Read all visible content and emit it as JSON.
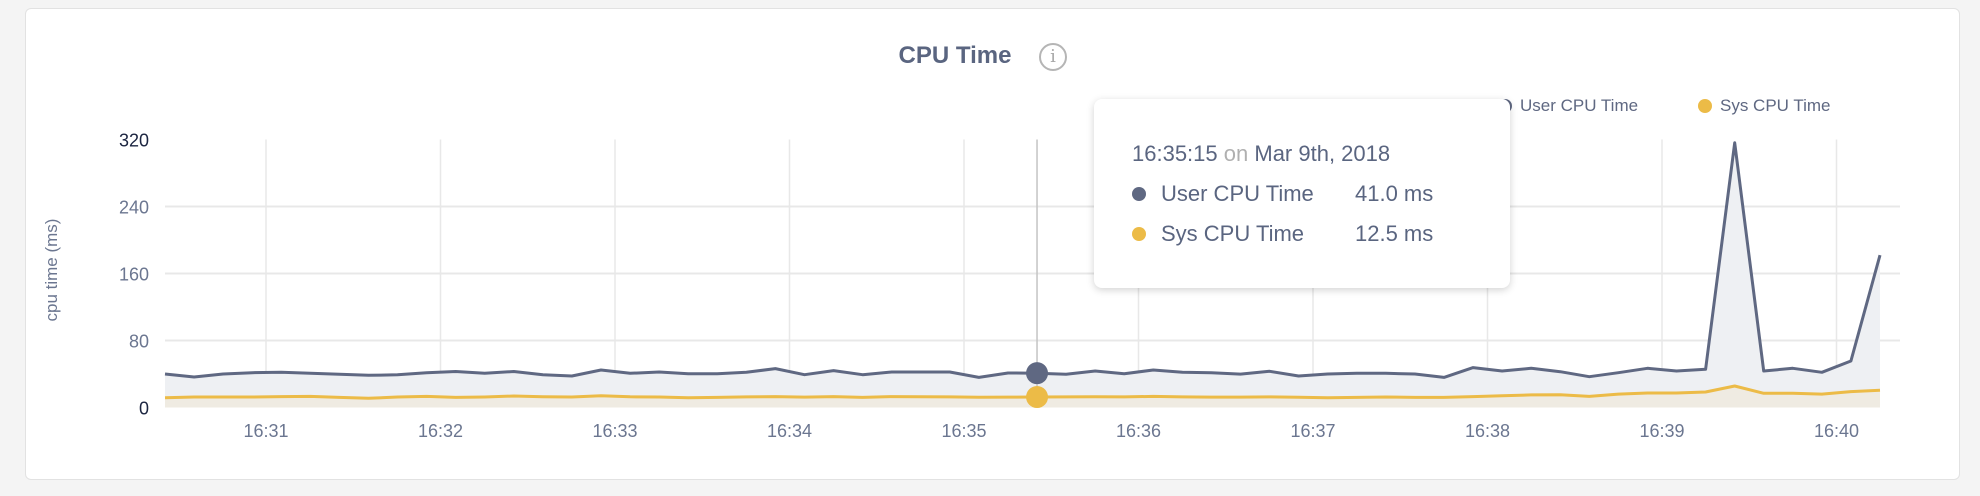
{
  "title": "CPU Time",
  "info_icon": "info-icon",
  "colors": {
    "user": "#5f6882",
    "sys": "#ecbb47",
    "user_fill": "#eef0f3",
    "sys_fill": "#efebe2",
    "grid": "#e8e8e8"
  },
  "tooltip": {
    "time": "16:35:15",
    "on": "on",
    "date": "Mar 9th, 2018",
    "rows": [
      {
        "label": "User CPU Time",
        "value": "41.0 ms"
      },
      {
        "label": "Sys CPU Time",
        "value": "12.5 ms"
      }
    ]
  },
  "chart_data": {
    "type": "area",
    "title": "CPU Time",
    "ylabel": "cpu time (ms)",
    "xlabel": "",
    "ylim": [
      0,
      320
    ],
    "yticks": [
      "0",
      "80",
      "160",
      "240",
      "320"
    ],
    "xticks": [
      "16:31",
      "16:32",
      "16:33",
      "16:34",
      "16:35",
      "16:36",
      "16:37",
      "16:38",
      "16:39",
      "16:40"
    ],
    "x_start": "16:30:15",
    "x_end": "16:40:05",
    "x_interval_seconds": 10,
    "grid": true,
    "legend_position": "top-right",
    "hover_index": 30,
    "series": [
      {
        "name": "User CPU Time",
        "values": [
          40,
          36.4,
          40,
          41.6,
          42,
          41,
          39.6,
          38.4,
          39,
          41.6,
          43,
          41,
          43,
          39,
          37.6,
          44.8,
          40.8,
          42.4,
          40.4,
          40.4,
          42,
          46.4,
          39.2,
          44,
          39.2,
          42.4,
          42.4,
          42.4,
          36,
          41.2,
          41.0,
          39.6,
          43.6,
          40.4,
          44.8,
          42,
          41.6,
          39.9,
          43.2,
          37.6,
          40,
          40.8,
          40.8,
          40,
          36,
          47.6,
          43.6,
          46.8,
          42.8,
          36.8,
          41.6,
          46.8,
          43.6,
          45.6,
          316,
          43.6,
          46.8,
          42,
          55.5,
          182
        ]
      },
      {
        "name": "Sys CPU Time",
        "values": [
          11.7,
          12.5,
          12.5,
          12.5,
          13,
          13.3,
          12,
          11,
          12.5,
          13.3,
          12,
          12.5,
          13.7,
          12.8,
          12.5,
          14,
          12.8,
          12.5,
          11.7,
          12,
          12.6,
          13,
          12.4,
          13,
          12,
          13,
          12.8,
          12.6,
          12.2,
          12.4,
          12.5,
          12.6,
          12.8,
          12.6,
          13.2,
          12.6,
          12.4,
          12.4,
          12.6,
          12.2,
          11.7,
          12,
          12.5,
          12,
          12,
          13,
          14,
          15,
          15.3,
          13.3,
          16,
          17.3,
          17.3,
          18.5,
          25.7,
          17,
          17,
          16,
          19,
          20.5
        ]
      }
    ]
  }
}
